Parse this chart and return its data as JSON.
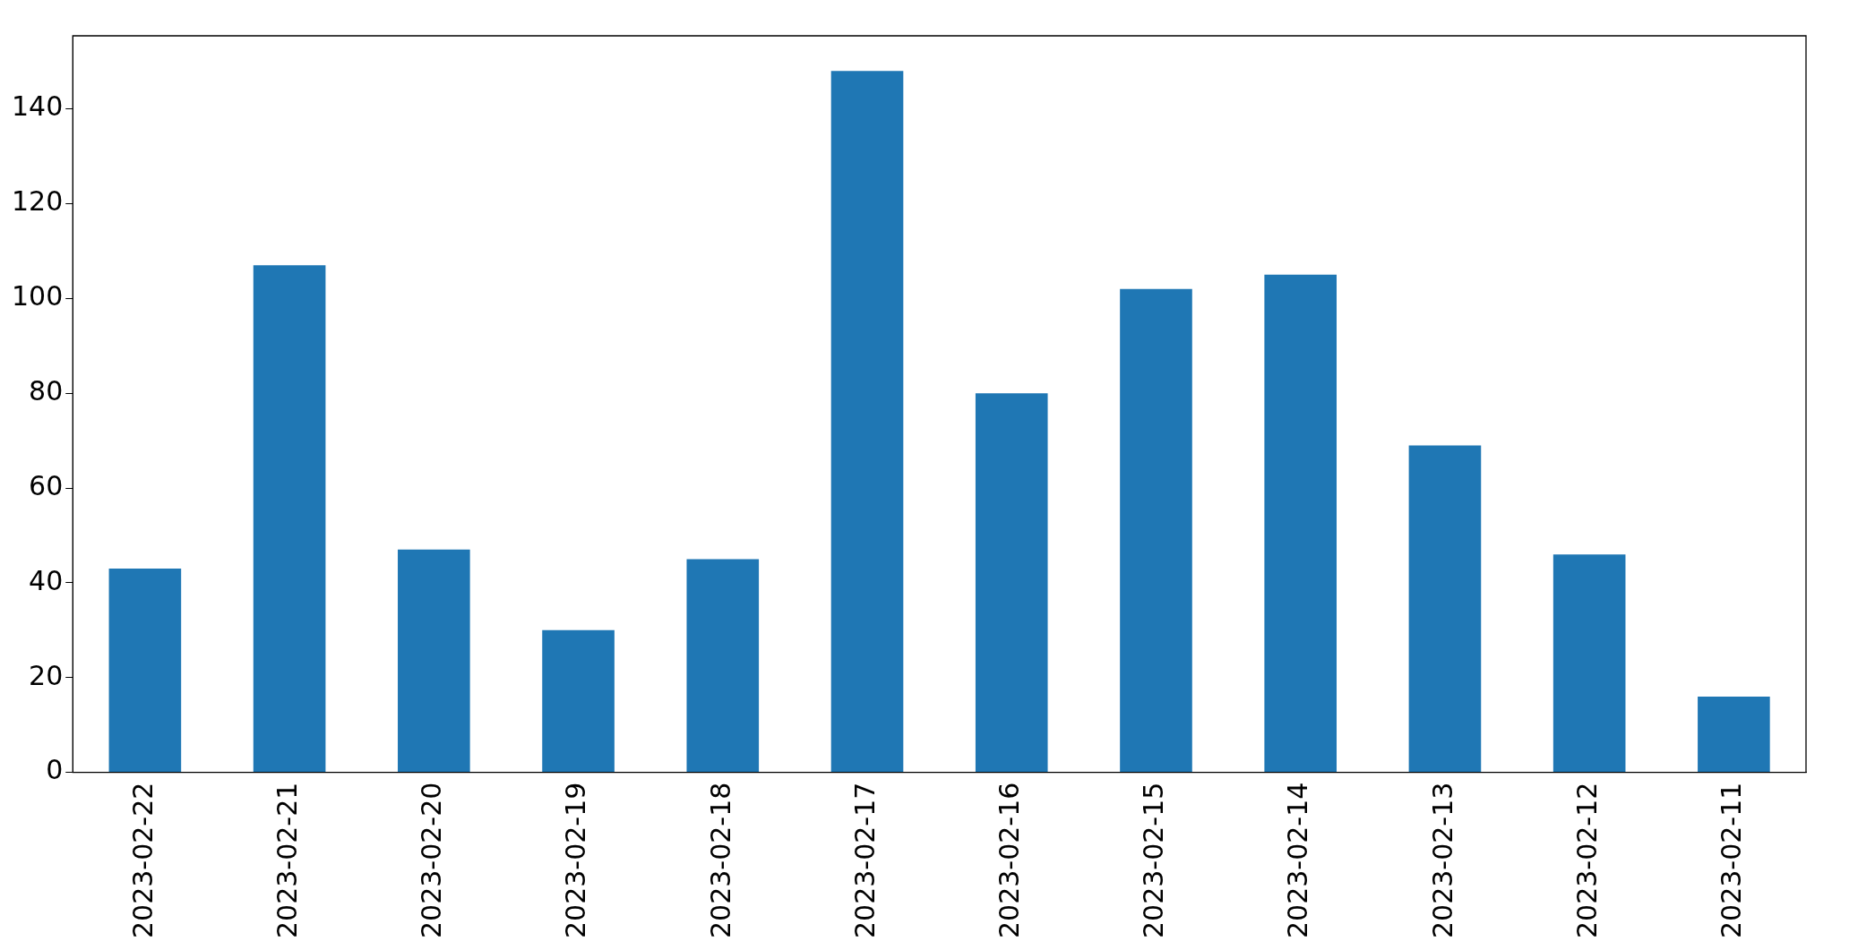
{
  "chart_data": {
    "type": "bar",
    "categories": [
      "2023-02-22",
      "2023-02-21",
      "2023-02-20",
      "2023-02-19",
      "2023-02-18",
      "2023-02-17",
      "2023-02-16",
      "2023-02-15",
      "2023-02-14",
      "2023-02-13",
      "2023-02-12",
      "2023-02-11"
    ],
    "values": [
      43,
      107,
      47,
      30,
      45,
      148,
      80,
      102,
      105,
      69,
      46,
      16
    ],
    "color": "#1f77b4",
    "ylim": [
      0,
      155.4
    ],
    "yticks": [
      0,
      20,
      40,
      60,
      80,
      100,
      120,
      140
    ],
    "grid": false,
    "legend": false
  }
}
